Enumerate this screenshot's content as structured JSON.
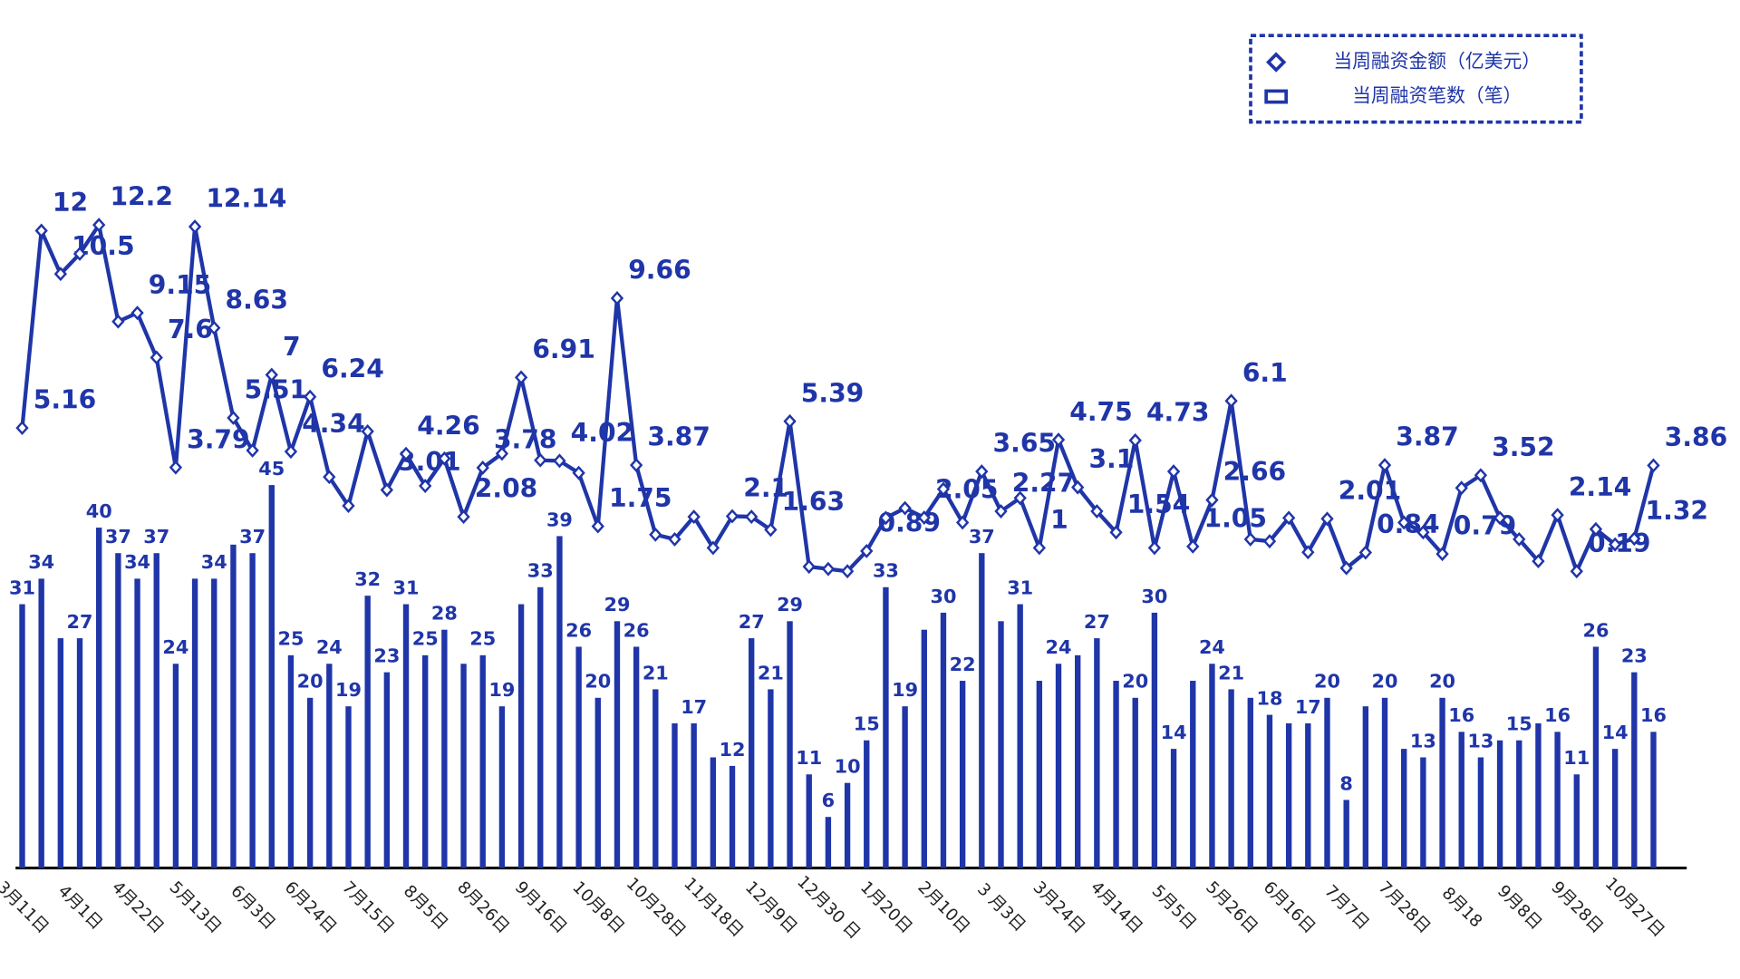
{
  "chart_data": {
    "type": "bar-line",
    "legend": "top-right",
    "categories": [
      "3月11日",
      null,
      null,
      "4月1日",
      null,
      null,
      "4月22日",
      null,
      null,
      "5月13日",
      null,
      null,
      "6月3日",
      null,
      null,
      "6月24日",
      null,
      null,
      "7月15日",
      null,
      null,
      "8月5日",
      null,
      null,
      "8月26日",
      null,
      null,
      "9月16日",
      null,
      null,
      "10月8日",
      null,
      null,
      "10月28日",
      null,
      null,
      "11月18日",
      null,
      null,
      "12月9日",
      null,
      null,
      "12月30 日",
      null,
      null,
      "1月20日",
      null,
      null,
      "2月10日",
      null,
      null,
      "3 月3日",
      null,
      null,
      "3月24日",
      null,
      null,
      "4月14日",
      null,
      null,
      "5月5日",
      null,
      null,
      "5月26日",
      null,
      null,
      "6月16日",
      null,
      null,
      "7月7日",
      null,
      null,
      "7月28日",
      null,
      null,
      "8月18",
      null,
      null,
      "9月8日",
      null,
      null,
      "9月28日",
      null,
      null,
      "10月27日",
      null
    ],
    "ylim": [
      0,
      102
    ],
    "y2lim": [
      -10.1,
      20
    ],
    "series": [
      {
        "name": "当周融资金额（亿美元）",
        "type": "line",
        "axis": "y2",
        "color": "#1f35a8",
        "values": [
          5.16,
          12,
          10.5,
          11.2,
          12.2,
          8.85,
          9.15,
          7.6,
          3.79,
          12.14,
          8.63,
          5.51,
          4.38,
          7,
          4.34,
          6.24,
          3.46,
          2.46,
          5.04,
          3.01,
          4.26,
          3.15,
          4.1,
          2.08,
          3.78,
          4.27,
          6.91,
          4.04,
          4.02,
          3.6,
          1.75,
          9.66,
          3.87,
          1.46,
          1.3,
          2.08,
          1.0,
          2.1,
          2.08,
          1.63,
          5.39,
          0.35,
          0.27,
          0.19,
          0.89,
          2.04,
          2.38,
          2.05,
          3.04,
          1.88,
          3.65,
          2.27,
          2.73,
          1,
          4.75,
          3.1,
          2.27,
          1.54,
          4.73,
          1.0,
          3.65,
          1.05,
          2.66,
          6.1,
          1.3,
          1.23,
          2.04,
          0.85,
          2.01,
          0.3,
          0.84,
          3.87,
          1.88,
          1.54,
          0.79,
          3.08,
          3.52,
          2.04,
          1.3,
          0.54,
          2.14,
          0.19,
          1.65,
          1.12,
          1.32,
          3.86
        ],
        "value_labels": [
          "5.16",
          "12",
          "10.5",
          null,
          "12.2",
          null,
          "9.15",
          "7.6",
          "3.79",
          "12.14",
          "8.63",
          "5.51",
          null,
          "7",
          "4.34",
          "6.24",
          null,
          null,
          null,
          "3.01",
          "4.26",
          null,
          null,
          "2.08",
          "3.78",
          null,
          "6.91",
          null,
          "4.02",
          null,
          "1.75",
          "9.66",
          "3.87",
          null,
          null,
          null,
          null,
          "2.1",
          null,
          "1.63",
          "5.39",
          null,
          null,
          null,
          "0.89",
          null,
          null,
          "2.05",
          null,
          null,
          "3.65",
          "2.27",
          null,
          "1",
          "4.75",
          "3.1",
          null,
          "1.54",
          "4.73",
          null,
          null,
          "1.05",
          "2.66",
          "6.1",
          null,
          null,
          null,
          null,
          "2.01",
          null,
          "0.84",
          "3.87",
          null,
          null,
          "0.79",
          null,
          "3.52",
          null,
          null,
          null,
          "2.14",
          "0.19",
          null,
          null,
          "1.32",
          "3.86"
        ]
      },
      {
        "name": "当周融资笔数（笔）",
        "type": "bar",
        "axis": "y",
        "color": "#1f35a8",
        "values": [
          31,
          34,
          27,
          27,
          40,
          37,
          34,
          37,
          24,
          34,
          34,
          38,
          37,
          45,
          25,
          20,
          24,
          19,
          32,
          23,
          31,
          25,
          28,
          24,
          25,
          19,
          31,
          33,
          39,
          26,
          20,
          29,
          26,
          21,
          17,
          17,
          13,
          12,
          27,
          21,
          29,
          11,
          6,
          10,
          15,
          33,
          19,
          28,
          30,
          22,
          37,
          29,
          31,
          22,
          24,
          25,
          27,
          22,
          20,
          30,
          14,
          22,
          24,
          21,
          20,
          18,
          17,
          17,
          20,
          8,
          19,
          20,
          14,
          13,
          20,
          16,
          13,
          15,
          15,
          17,
          16,
          11,
          26,
          14,
          23,
          16
        ],
        "value_labels": [
          "31",
          "34",
          null,
          "27",
          "40",
          "37",
          "34",
          "37",
          "24",
          null,
          "34",
          null,
          "37",
          "45",
          "25",
          "20",
          "24",
          "19",
          "32",
          "23",
          "31",
          "25",
          "28",
          null,
          "25",
          "19",
          null,
          "33",
          "39",
          "26",
          "20",
          "29",
          "26",
          "21",
          null,
          "17",
          null,
          "12",
          "27",
          "21",
          "29",
          "11",
          "6",
          "10",
          "15",
          "33",
          "19",
          null,
          "30",
          "22",
          "37",
          null,
          "31",
          null,
          "24",
          null,
          "27",
          null,
          "20",
          "30",
          "14",
          null,
          "24",
          "21",
          null,
          "18",
          null,
          "17",
          "20",
          "8",
          null,
          "20",
          null,
          "13",
          "20",
          "16",
          "13",
          null,
          "15",
          null,
          "16",
          "11",
          "26",
          "14",
          "23",
          "16"
        ]
      }
    ]
  }
}
